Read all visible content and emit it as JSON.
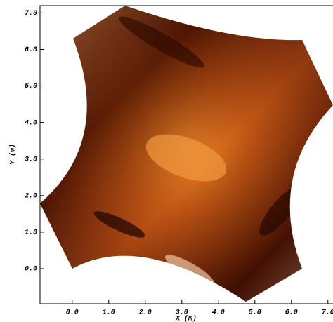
{
  "chart_data": {
    "type": "field",
    "x_label": "X (m)",
    "y_label": "Y (m)",
    "xlim": [
      -0.88,
      7.1
    ],
    "ylim": [
      -0.96,
      7.2
    ],
    "xticks": [
      {
        "value": 0,
        "label": "0.0"
      },
      {
        "value": 1,
        "label": "1.0"
      },
      {
        "value": 2,
        "label": "2.0"
      },
      {
        "value": 3,
        "label": "3.0"
      },
      {
        "value": 4,
        "label": "4.0"
      },
      {
        "value": 5,
        "label": "5.0"
      },
      {
        "value": 6,
        "label": "6.0"
      },
      {
        "value": 7,
        "label": "7.0"
      }
    ],
    "yticks": [
      {
        "value": 0,
        "label": "0.0"
      },
      {
        "value": 1,
        "label": "1.0"
      },
      {
        "value": 2,
        "label": "2.0"
      },
      {
        "value": 3,
        "label": "3.0"
      },
      {
        "value": 4,
        "label": "4.0"
      },
      {
        "value": 5,
        "label": "5.0"
      },
      {
        "value": 6,
        "label": "6.0"
      },
      {
        "value": 7,
        "label": "7.0"
      }
    ]
  }
}
